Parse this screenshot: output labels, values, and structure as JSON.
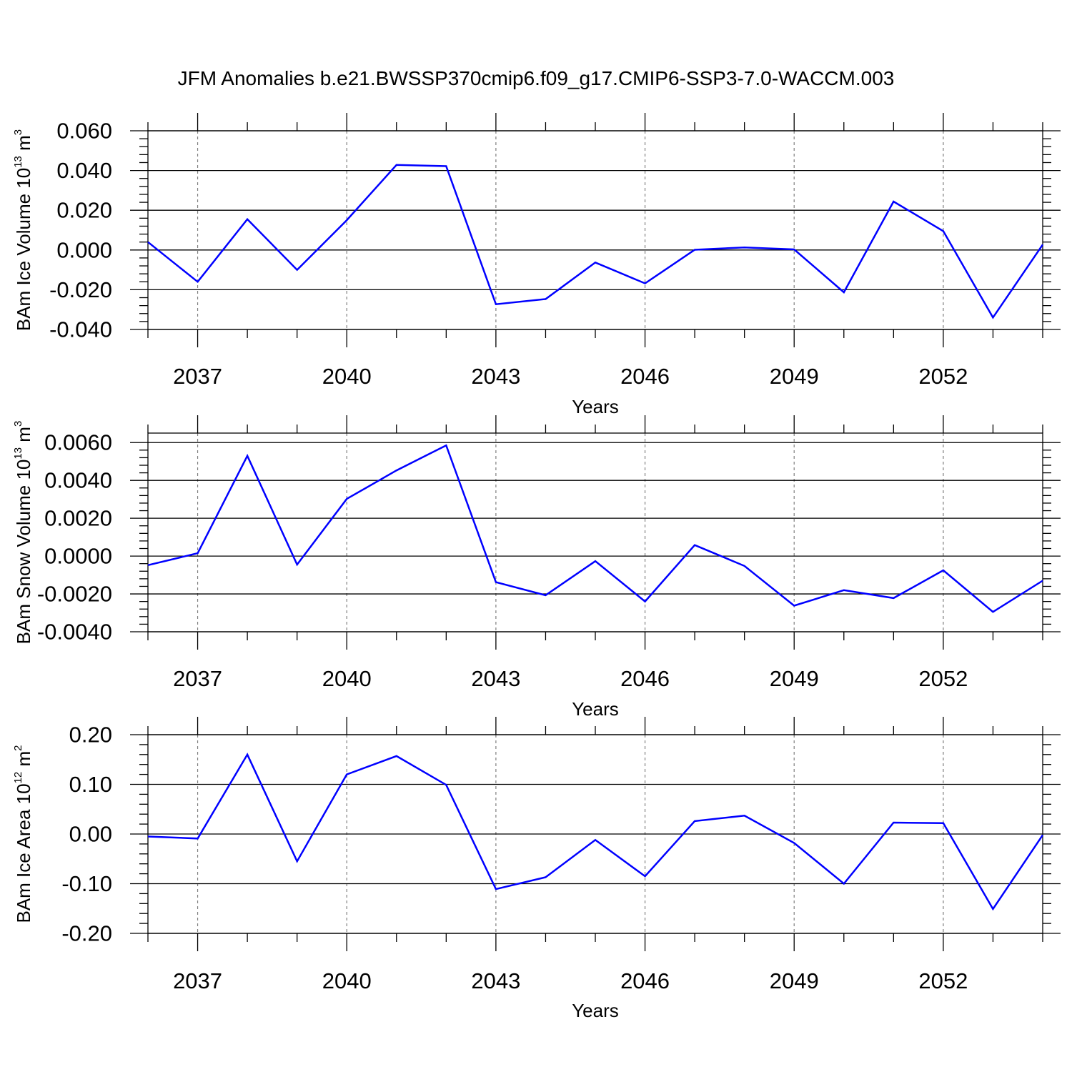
{
  "title": "JFM Anomalies b.e21.BWSSP370cmip6.f09_g17.CMIP6-SSP3-7.0-WACCM.003",
  "chart_data": [
    {
      "type": "line",
      "ylabel": "BAm Ice Volume 10",
      "ylabel_exp": "13",
      "ylabel_unit": " m",
      "ylabel_unit_exp": "3",
      "xlabel": "Years",
      "xlim": [
        2036,
        2054
      ],
      "ylim": [
        -0.04,
        0.06
      ],
      "yticks": [
        0.06,
        0.04,
        0.02,
        0.0,
        -0.02,
        -0.04
      ],
      "ytick_labels": [
        "0.060",
        "0.040",
        "0.020",
        "0.000",
        "-0.020",
        "-0.040"
      ],
      "xticks": [
        2037,
        2040,
        2043,
        2046,
        2049,
        2052
      ],
      "xtick_labels": [
        "2037",
        "2040",
        "2043",
        "2046",
        "2049",
        "2052"
      ],
      "grid": "vertical-dashed",
      "color": "#0000ff",
      "x": [
        2036,
        2037,
        2038,
        2039,
        2040,
        2041,
        2042,
        2043,
        2044,
        2045,
        2046,
        2047,
        2048,
        2049,
        2050,
        2051,
        2052,
        2053,
        2054
      ],
      "values": [
        0.004,
        -0.016,
        0.0155,
        -0.01,
        0.015,
        0.0428,
        0.0422,
        -0.0273,
        -0.0247,
        -0.0063,
        -0.0168,
        0.0001,
        0.0013,
        0.0003,
        -0.0213,
        0.0244,
        0.0095,
        -0.034,
        0.0027
      ]
    },
    {
      "type": "line",
      "ylabel": "BAm Snow Volume 10",
      "ylabel_exp": "13",
      "ylabel_unit": " m",
      "ylabel_unit_exp": "3",
      "xlabel": "Years",
      "xlim": [
        2036,
        2054
      ],
      "ylim": [
        -0.004,
        0.0065
      ],
      "yticks": [
        0.006,
        0.004,
        0.002,
        0.0,
        -0.002,
        -0.004
      ],
      "ytick_labels": [
        "0.0060",
        "0.0040",
        "0.0020",
        "0.0000",
        "-0.0020",
        "-0.0040"
      ],
      "xticks": [
        2037,
        2040,
        2043,
        2046,
        2049,
        2052
      ],
      "xtick_labels": [
        "2037",
        "2040",
        "2043",
        "2046",
        "2049",
        "2052"
      ],
      "grid": "vertical-dashed",
      "color": "#0000ff",
      "x": [
        2036,
        2037,
        2038,
        2039,
        2040,
        2041,
        2042,
        2043,
        2044,
        2045,
        2046,
        2047,
        2048,
        2049,
        2050,
        2051,
        2052,
        2053,
        2054
      ],
      "values": [
        -0.00048,
        0.00015,
        0.0053,
        -0.00045,
        0.00302,
        0.00453,
        0.00585,
        -0.00138,
        -0.00207,
        -0.00027,
        -0.0024,
        0.00058,
        -0.00052,
        -0.00262,
        -0.0018,
        -0.00222,
        -0.00075,
        -0.00295,
        -0.0013
      ]
    },
    {
      "type": "line",
      "ylabel": "BAm Ice Area 10",
      "ylabel_exp": "12",
      "ylabel_unit": " m",
      "ylabel_unit_exp": "2",
      "xlabel": "Years",
      "xlim": [
        2036,
        2054
      ],
      "ylim": [
        -0.2,
        0.2
      ],
      "yticks": [
        0.2,
        0.1,
        0.0,
        -0.1,
        -0.2
      ],
      "ytick_labels": [
        "0.20",
        "0.10",
        "0.00",
        "-0.10",
        "-0.20"
      ],
      "xticks": [
        2037,
        2040,
        2043,
        2046,
        2049,
        2052
      ],
      "xtick_labels": [
        "2037",
        "2040",
        "2043",
        "2046",
        "2049",
        "2052"
      ],
      "grid": "vertical-dashed",
      "color": "#0000ff",
      "x": [
        2036,
        2037,
        2038,
        2039,
        2040,
        2041,
        2042,
        2043,
        2044,
        2045,
        2046,
        2047,
        2048,
        2049,
        2050,
        2051,
        2052,
        2053,
        2054
      ],
      "values": [
        -0.005,
        -0.009,
        0.16,
        -0.055,
        0.12,
        0.157,
        0.099,
        -0.111,
        -0.087,
        -0.012,
        -0.085,
        0.026,
        0.037,
        -0.018,
        -0.1,
        0.023,
        0.022,
        -0.151,
        -0.002
      ]
    }
  ]
}
